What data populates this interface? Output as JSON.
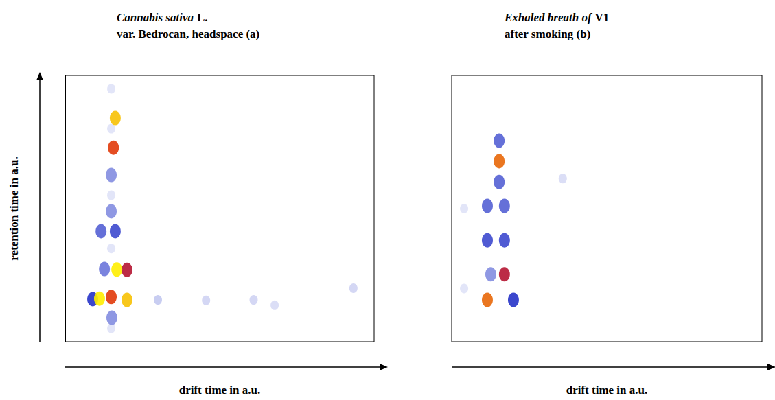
{
  "chart_data": [
    {
      "type": "heatmap",
      "title": [
        "Cannabis sativa L.",
        "var. Bedrocan, headspace (a)"
      ],
      "x_label": "drift time in a.u.",
      "y_label": "retention time in a.u.",
      "xlim": [
        0,
        100
      ],
      "ylim": [
        0,
        100
      ],
      "tick_labels": false,
      "value_range": [
        0,
        100
      ],
      "cells": [
        [
          14.9,
          95,
          8
        ],
        [
          14.9,
          80,
          8
        ],
        [
          14.9,
          55,
          8
        ],
        [
          14.9,
          35,
          8
        ],
        [
          14.9,
          5,
          8
        ],
        [
          30,
          15.7,
          15
        ],
        [
          45.6,
          15.5,
          12
        ],
        [
          61,
          15.7,
          12
        ],
        [
          67.8,
          13.7,
          10
        ],
        [
          93.3,
          20.1,
          12
        ],
        [
          15.1,
          9.0,
          30
        ],
        [
          14.9,
          62.6,
          30
        ],
        [
          14.9,
          49.0,
          30
        ],
        [
          11.6,
          41.5,
          40
        ],
        [
          16.2,
          41.5,
          45
        ],
        [
          12.7,
          27.3,
          35
        ],
        [
          20,
          27,
          70
        ],
        [
          16.7,
          27.1,
          100
        ],
        [
          8.9,
          16.0,
          50
        ],
        [
          14.9,
          16.8,
          80
        ],
        [
          11.1,
          16.2,
          100
        ],
        [
          20,
          15.7,
          95
        ],
        [
          15.6,
          72.9,
          80
        ],
        [
          16.2,
          84.0,
          95
        ]
      ]
    },
    {
      "type": "heatmap",
      "title": [
        "Exhaled breath of V1",
        "after smoking (b)"
      ],
      "x_label": "drift time in a.u.",
      "xlim": [
        0,
        100
      ],
      "ylim": [
        0,
        100
      ],
      "tick_labels": false,
      "value_range": [
        0,
        100
      ],
      "cells": [
        [
          35.8,
          61.3,
          10
        ],
        [
          4,
          50,
          8
        ],
        [
          4,
          20,
          8
        ],
        [
          15.3,
          75.5,
          40
        ],
        [
          15.3,
          60,
          40
        ],
        [
          11.5,
          51,
          40
        ],
        [
          17,
          51,
          40
        ],
        [
          11.5,
          38.1,
          45
        ],
        [
          17,
          38.1,
          45
        ],
        [
          12.6,
          25.3,
          30
        ],
        [
          19.9,
          15.7,
          50
        ],
        [
          17,
          25.3,
          70
        ],
        [
          11.5,
          15.7,
          85
        ],
        [
          15.3,
          67.8,
          85
        ]
      ]
    }
  ]
}
